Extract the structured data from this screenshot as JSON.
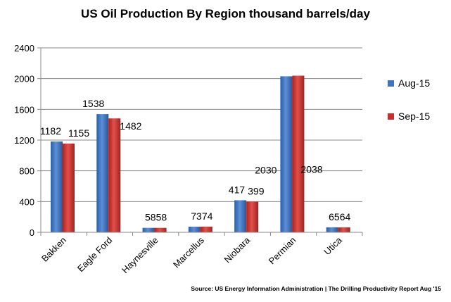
{
  "chart_data": {
    "type": "bar",
    "title": "US Oil Production By Region thousand barrels/day",
    "categories": [
      "Bakken",
      "Eagle Ford",
      "Haynesville",
      "Marcellus",
      "Niobara",
      "Permian",
      "Utica"
    ],
    "series": [
      {
        "name": "Aug-15",
        "color": "#3d72c4",
        "values": [
          1182,
          1538,
          58,
          73,
          417,
          2030,
          65
        ]
      },
      {
        "name": "Sep-15",
        "color": "#c9302c",
        "values": [
          1155,
          1482,
          58,
          74,
          399,
          2038,
          64
        ]
      }
    ],
    "data_labels": [
      [
        "1182",
        "1155"
      ],
      [
        "1538",
        "1482"
      ],
      [
        "58",
        "58"
      ],
      [
        "73",
        "74"
      ],
      [
        "417",
        "399"
      ],
      [
        "2030",
        "2038"
      ],
      [
        "65",
        "64"
      ]
    ],
    "y_ticks": [
      "0",
      "400",
      "800",
      "1200",
      "1600",
      "2000",
      "2400"
    ],
    "ylim": [
      0,
      2400
    ],
    "grid": true,
    "legend": "right"
  },
  "source": "Source: US Energy Information Administration  | The Drilling Productivity Report  Aug '15"
}
